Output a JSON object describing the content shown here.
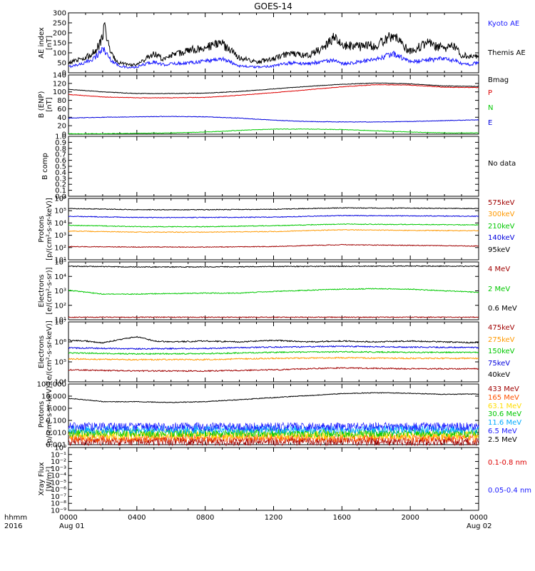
{
  "title": "GOES-14",
  "chart_data": [
    {
      "type": "line",
      "ylabel": "AE index [nT]",
      "ylim": [
        0,
        300
      ],
      "yticks": [
        "0",
        "50",
        "100",
        "150",
        "200",
        "250",
        "300"
      ],
      "legend_placement": "right",
      "series": [
        {
          "name": "Kyoto AE",
          "color": "#1a1aff",
          "x_hours": [
            0,
            1,
            1.6,
            2,
            2.1,
            2.3,
            2.6,
            3,
            3.5,
            4,
            4.5,
            5,
            5.5,
            6,
            7,
            8,
            9,
            10,
            11,
            12,
            13,
            14,
            15,
            15.5,
            16,
            17,
            18,
            19,
            20,
            21,
            22,
            22.6,
            23,
            23.5,
            24
          ],
          "values": [
            30,
            50,
            80,
            120,
            115,
            85,
            55,
            35,
            25,
            28,
            45,
            55,
            40,
            45,
            50,
            60,
            70,
            35,
            28,
            35,
            50,
            45,
            60,
            60,
            45,
            55,
            65,
            95,
            55,
            65,
            70,
            60,
            45,
            40,
            55
          ]
        },
        {
          "name": "Themis AE",
          "x_hours": [
            0,
            1,
            1.6,
            2,
            2.1,
            2.3,
            2.6,
            3,
            3.5,
            4,
            4.5,
            5,
            5.5,
            6,
            7,
            8,
            9,
            10,
            11,
            12,
            13,
            14,
            15,
            15.5,
            16,
            17,
            18,
            19,
            20,
            21,
            22,
            22.6,
            23,
            23.5,
            24
          ],
          "values": [
            50,
            75,
            110,
            175,
            265,
            150,
            80,
            50,
            40,
            38,
            70,
            95,
            70,
            85,
            110,
            130,
            145,
            75,
            55,
            70,
            100,
            85,
            130,
            175,
            140,
            130,
            140,
            185,
            105,
            150,
            120,
            135,
            90,
            80,
            85
          ]
        }
      ]
    },
    {
      "type": "line",
      "ylabel": "B (ENP) [nT]",
      "ylim": [
        0,
        140
      ],
      "yticks": [
        "0",
        "20",
        "40",
        "60",
        "80",
        "100",
        "120",
        "140"
      ],
      "series": [
        {
          "name": "Bmag",
          "x_hours": [
            0,
            2,
            4,
            6,
            8,
            10,
            12,
            14,
            16,
            18,
            20,
            22,
            24
          ],
          "values": [
            106,
            100,
            96,
            96,
            97,
            101,
            107,
            113,
            118,
            121,
            119,
            114,
            113
          ]
        },
        {
          "name": "P",
          "color": "#dd0000",
          "x_hours": [
            0,
            2,
            4,
            6,
            8,
            10,
            12,
            14,
            16,
            18,
            20,
            22,
            24
          ],
          "values": [
            94,
            88,
            86,
            86,
            87,
            92,
            98,
            105,
            112,
            117,
            116,
            111,
            110
          ]
        },
        {
          "name": "N",
          "color": "#00c800",
          "x_hours": [
            0,
            2,
            4,
            6,
            8,
            10,
            12,
            14,
            16,
            18,
            20,
            22,
            24
          ],
          "values": [
            1,
            1,
            2,
            3,
            5,
            9,
            12,
            12,
            11,
            8,
            5,
            3,
            3
          ]
        },
        {
          "name": "E",
          "color": "#0000dd",
          "x_hours": [
            0,
            2,
            4,
            6,
            8,
            10,
            12,
            14,
            16,
            18,
            20,
            22,
            24
          ],
          "values": [
            38,
            40,
            41,
            42,
            41,
            38,
            33,
            30,
            29,
            29,
            30,
            32,
            34
          ]
        }
      ]
    },
    {
      "type": "line",
      "ylabel": "B comp",
      "ylim": [
        0,
        1
      ],
      "yticks": [
        "0.0",
        "0.1",
        "0.2",
        "0.3",
        "0.4",
        "0.5",
        "0.6",
        "0.7",
        "0.8",
        "0.9",
        "1.0"
      ],
      "annotation": "No data",
      "series": []
    },
    {
      "type": "line",
      "ylabel": "Protons [p/(cm²-s-sr-keV)]",
      "yscale": "log",
      "ylim": [
        10,
        1000000
      ],
      "yticks": [
        "10¹",
        "10²",
        "10³",
        "10⁴",
        "10⁵",
        "10⁶"
      ],
      "series": [
        {
          "name": "575keV",
          "color": "#a00000",
          "x_hours": [
            0,
            4,
            8,
            12,
            16,
            20,
            24
          ],
          "values": [
            120,
            110,
            110,
            120,
            170,
            150,
            130
          ]
        },
        {
          "name": "300keV",
          "color": "#ff9900",
          "x_hours": [
            0,
            4,
            8,
            12,
            16,
            20,
            24
          ],
          "values": [
            2200,
            1800,
            1800,
            2000,
            2800,
            2500,
            2300
          ]
        },
        {
          "name": "210keV",
          "color": "#00c800",
          "x_hours": [
            0,
            4,
            8,
            12,
            16,
            20,
            24
          ],
          "values": [
            6500,
            5000,
            5000,
            6000,
            8000,
            7500,
            7000
          ]
        },
        {
          "name": "140keV",
          "color": "#0000dd",
          "x_hours": [
            0,
            4,
            8,
            12,
            16,
            20,
            24
          ],
          "values": [
            35000,
            28000,
            28000,
            30000,
            40000,
            38000,
            35000
          ]
        },
        {
          "name": "95keV",
          "x_hours": [
            0,
            4,
            8,
            12,
            16,
            20,
            24
          ],
          "values": [
            150000,
            120000,
            120000,
            130000,
            170000,
            160000,
            150000
          ]
        }
      ]
    },
    {
      "type": "line",
      "ylabel": "Electrons [e/(cm²-s-sr)]",
      "yscale": "log",
      "ylim": [
        10,
        100000
      ],
      "yticks": [
        "10¹",
        "10²",
        "10³",
        "10⁴",
        "10⁵"
      ],
      "series": [
        {
          "name": "4 MeV",
          "color": "#a00000",
          "x_hours": [
            0,
            4,
            8,
            12,
            16,
            20,
            24
          ],
          "values": [
            15,
            15,
            15,
            15,
            15,
            15,
            15
          ]
        },
        {
          "name": "2 MeV",
          "color": "#00c800",
          "x_hours": [
            0,
            1,
            2,
            4,
            8,
            10,
            12,
            16,
            18,
            20,
            22,
            24
          ],
          "values": [
            1100,
            800,
            600,
            600,
            700,
            700,
            900,
            1300,
            1400,
            1300,
            1000,
            800
          ]
        },
        {
          "name": "0.6 MeV",
          "x_hours": [
            0,
            4,
            8,
            12,
            16,
            20,
            24
          ],
          "values": [
            50000,
            45000,
            45000,
            48000,
            50000,
            52000,
            50000
          ]
        }
      ]
    },
    {
      "type": "line",
      "ylabel": "Electrons [e/(cm²-s-sr-keV)]",
      "yscale": "log",
      "ylim": [
        10000,
        10000000
      ],
      "yticks": [
        "10⁴",
        "10⁵",
        "10⁶",
        "10⁷"
      ],
      "series": [
        {
          "name": "475keV",
          "color": "#a00000",
          "x_hours": [
            0,
            4,
            8,
            12,
            16,
            20,
            24
          ],
          "values": [
            40000,
            35000,
            35000,
            40000,
            50000,
            45000,
            45000
          ]
        },
        {
          "name": "275keV",
          "color": "#ff9900",
          "x_hours": [
            0,
            4,
            8,
            12,
            16,
            20,
            24
          ],
          "values": [
            140000,
            130000,
            130000,
            150000,
            160000,
            150000,
            150000
          ]
        },
        {
          "name": "150keV",
          "color": "#00c800",
          "x_hours": [
            0,
            4,
            8,
            12,
            16,
            20,
            24
          ],
          "values": [
            280000,
            250000,
            260000,
            300000,
            320000,
            300000,
            300000
          ]
        },
        {
          "name": "75keV",
          "color": "#0000dd",
          "x_hours": [
            0,
            4,
            8,
            12,
            16,
            20,
            24
          ],
          "values": [
            500000,
            450000,
            470000,
            550000,
            600000,
            550000,
            520000
          ]
        },
        {
          "name": "40keV",
          "x_hours": [
            0,
            1,
            2,
            3,
            4,
            5,
            6,
            8,
            10,
            12,
            14,
            16,
            18,
            20,
            22,
            24
          ],
          "values": [
            1200000,
            1100000,
            900000,
            1300000,
            1800000,
            1100000,
            1000000,
            1100000,
            1000000,
            1200000,
            1000000,
            1100000,
            1000000,
            1100000,
            1000000,
            900000
          ]
        }
      ]
    },
    {
      "type": "line",
      "ylabel": "Protons [p/(cm²-s-sr-keV)]",
      "yscale": "log",
      "ylim": [
        0.001,
        100
      ],
      "yticks": [
        "0.001",
        "0.010",
        "0.100",
        "1.000",
        "10.000",
        "100.000"
      ],
      "series": [
        {
          "name": "433 MeV",
          "color": "#a00000",
          "level": 0.0018
        },
        {
          "name": "165 MeV",
          "color": "#ff5000",
          "level": 0.0035
        },
        {
          "name": "63.1 MeV",
          "color": "#ffdd00",
          "level": 0.006
        },
        {
          "name": "30.6 MeV",
          "color": "#00c800",
          "level": 0.009
        },
        {
          "name": "11.6 MeV",
          "color": "#00aaff",
          "level": 0.018
        },
        {
          "name": "6.5 MeV",
          "color": "#1a1aff",
          "level": 0.03
        },
        {
          "name": "2.5 MeV",
          "x_hours": [
            0,
            2,
            4,
            6,
            8,
            10,
            12,
            14,
            16,
            18,
            20,
            22,
            24
          ],
          "values": [
            6.5,
            3.5,
            3.5,
            3.0,
            3.5,
            5.0,
            7.5,
            11,
            16,
            19,
            17,
            14,
            15
          ]
        }
      ]
    },
    {
      "type": "line",
      "ylabel": "Xray Flux [W/m²]",
      "yscale": "log",
      "ylim": [
        1e-09,
        1
      ],
      "yticks": [
        "10⁻⁹",
        "10⁻⁸",
        "10⁻⁷",
        "10⁻⁶",
        "10⁻⁵",
        "10⁻⁴",
        "10⁻³",
        "10⁻²",
        "10⁻¹",
        "10⁰"
      ],
      "series": [
        {
          "name": "0.1-0.8 nm",
          "color": "#dd0000"
        },
        {
          "name": "0.05-0.4 nm",
          "color": "#1a1aff"
        }
      ]
    }
  ],
  "x_axis": {
    "ticks": [
      "0000",
      "0400",
      "0800",
      "1200",
      "1600",
      "2000",
      "0000"
    ],
    "left_label_top": "hhmm",
    "left_label_bottom": "2016",
    "date_start": "Aug 01",
    "date_end": "Aug 02"
  }
}
